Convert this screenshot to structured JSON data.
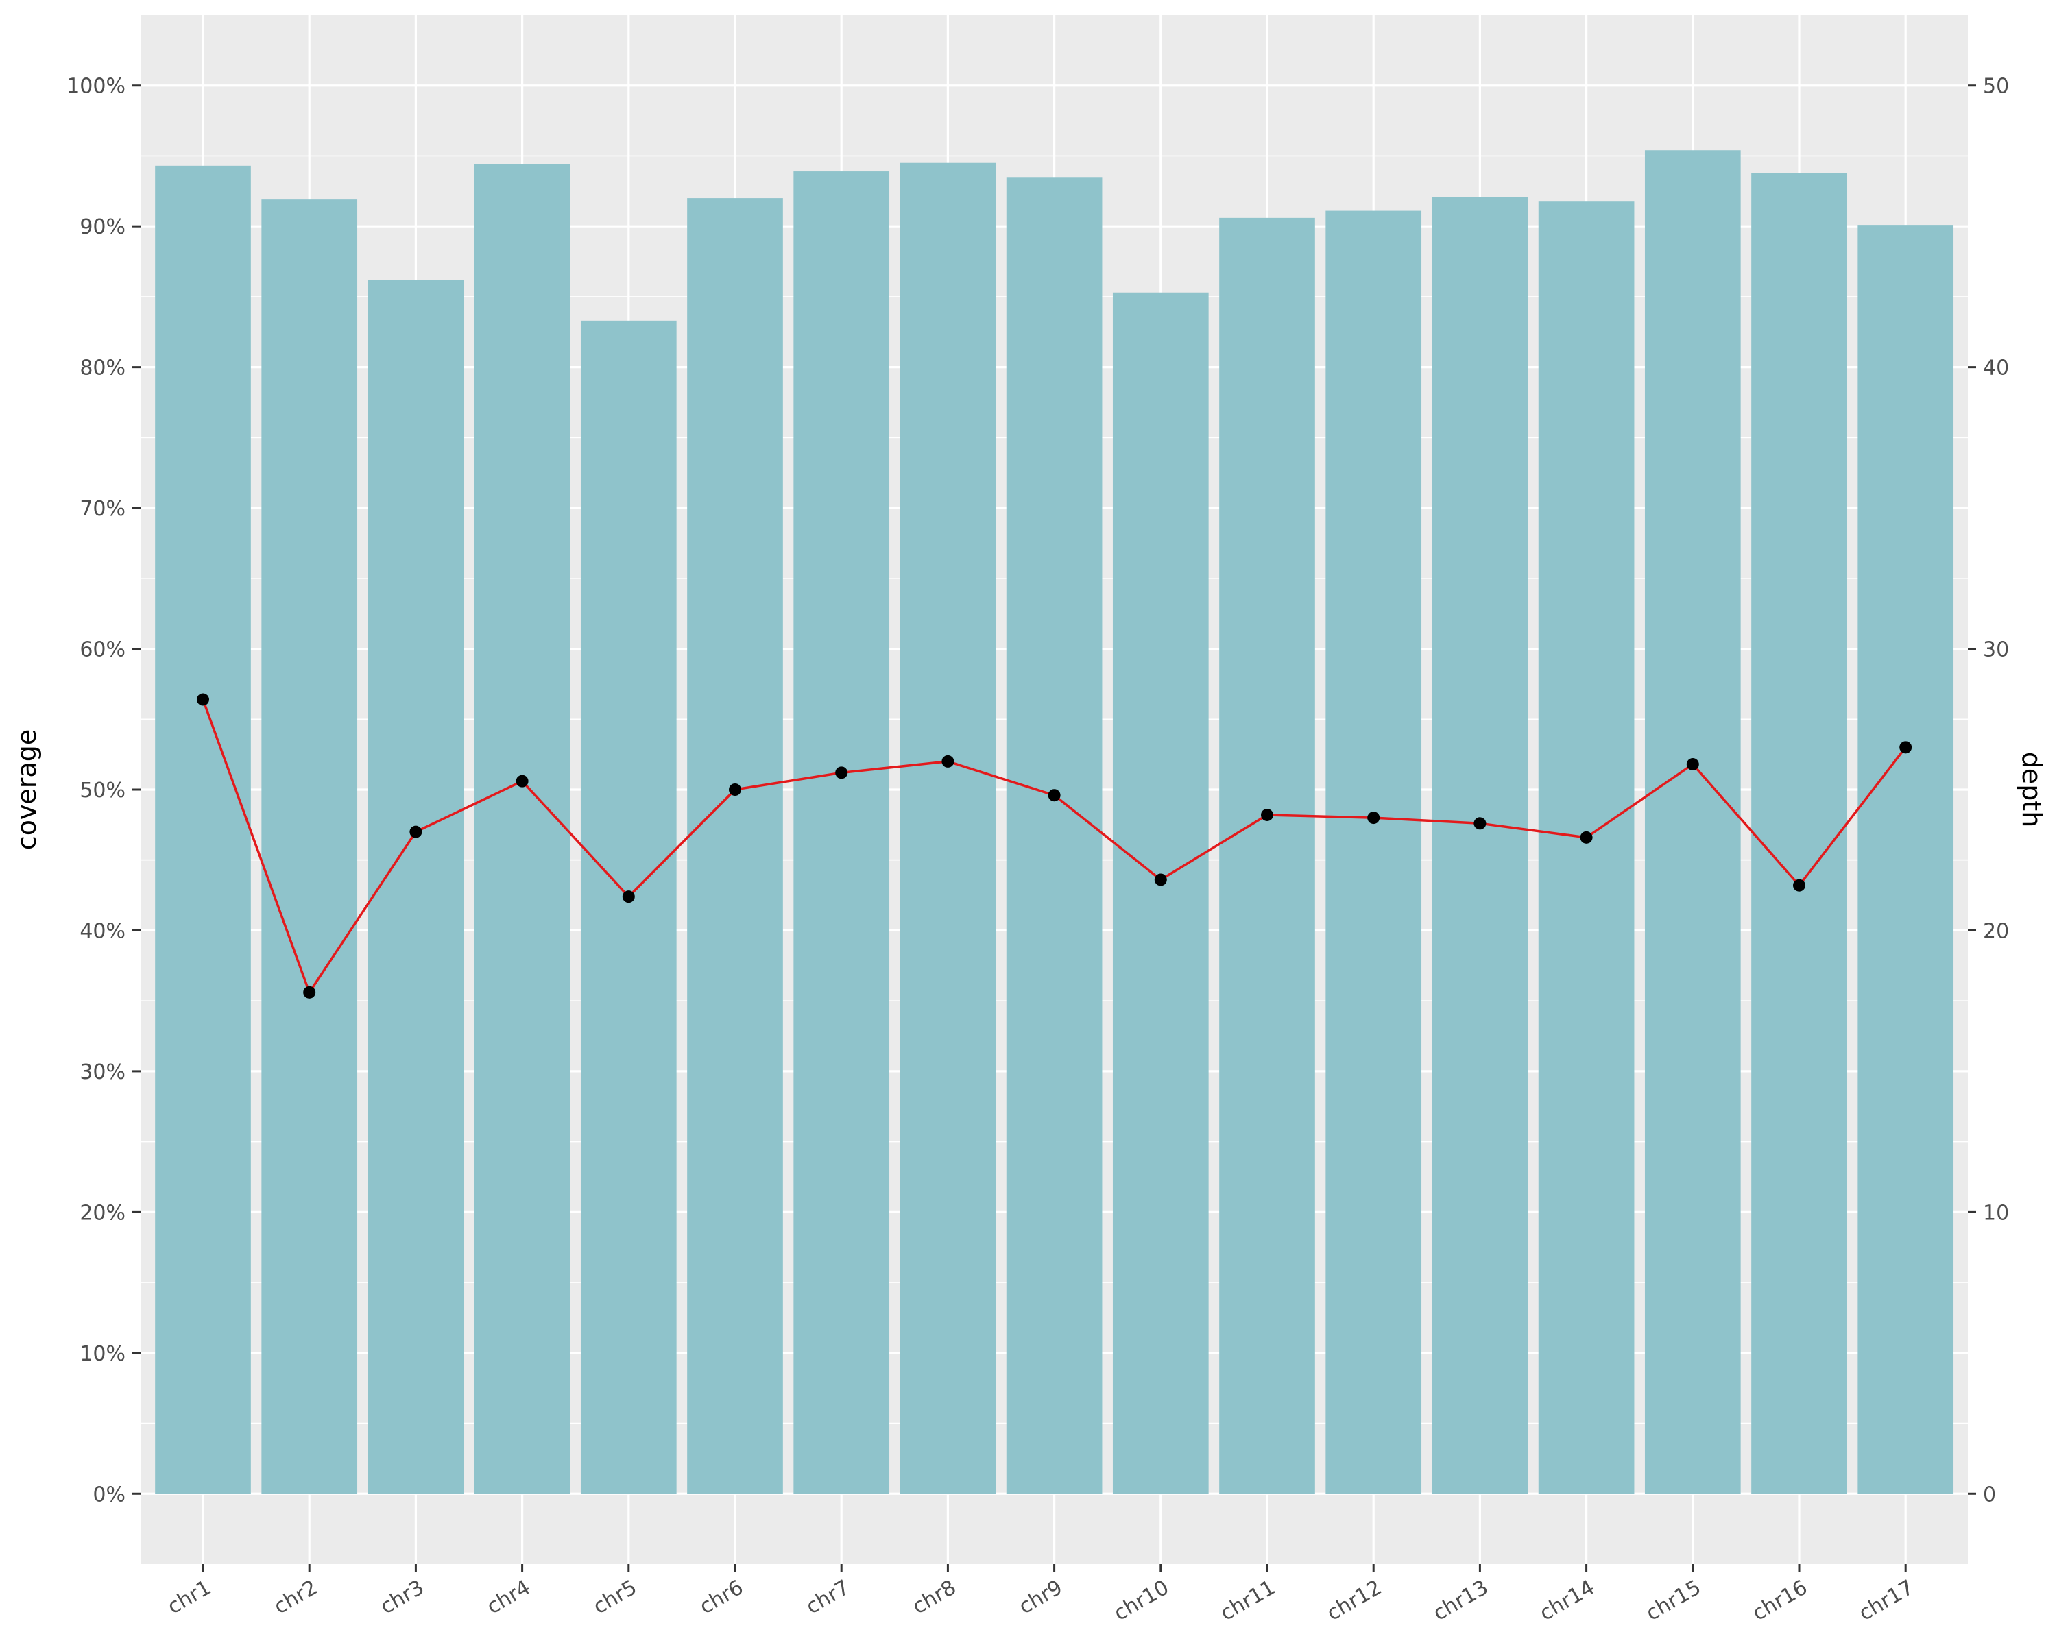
{
  "chart_data": {
    "type": "bar",
    "categories": [
      "chr1",
      "chr2",
      "chr3",
      "chr4",
      "chr5",
      "chr6",
      "chr7",
      "chr8",
      "chr9",
      "chr10",
      "chr11",
      "chr12",
      "chr13",
      "chr14",
      "chr15",
      "chr16",
      "chr17"
    ],
    "series": [
      {
        "axis": "left",
        "type": "bar",
        "color": "#8fc3cb",
        "values": [
          94.3,
          91.9,
          86.2,
          94.4,
          83.3,
          92.0,
          93.9,
          94.5,
          93.5,
          85.3,
          90.6,
          91.1,
          92.1,
          91.8,
          95.4,
          93.8,
          90.1
        ]
      },
      {
        "axis": "right",
        "type": "line",
        "color": "#e31a1c",
        "point_color": "#000000",
        "values": [
          28.2,
          17.8,
          23.5,
          25.3,
          21.2,
          25.0,
          25.6,
          26.0,
          24.8,
          21.8,
          24.1,
          24.0,
          23.8,
          23.3,
          25.9,
          21.6,
          26.5
        ]
      }
    ],
    "ylabel": "coverage",
    "y2label": "depth",
    "ylim": [
      -5,
      105
    ],
    "y_ticks": [
      0,
      10,
      20,
      30,
      40,
      50,
      60,
      70,
      80,
      90,
      100
    ],
    "y_tick_labels": [
      "0%",
      "10%",
      "20%",
      "30%",
      "40%",
      "50%",
      "60%",
      "70%",
      "80%",
      "90%",
      "100%"
    ],
    "y2_ticks": [
      0,
      10,
      20,
      30,
      40,
      50
    ],
    "y2_tick_labels": [
      "0",
      "10",
      "20",
      "30",
      "40",
      "50"
    ],
    "y2_scale": 2,
    "grid": true,
    "panel_background": "#ebebeb"
  }
}
